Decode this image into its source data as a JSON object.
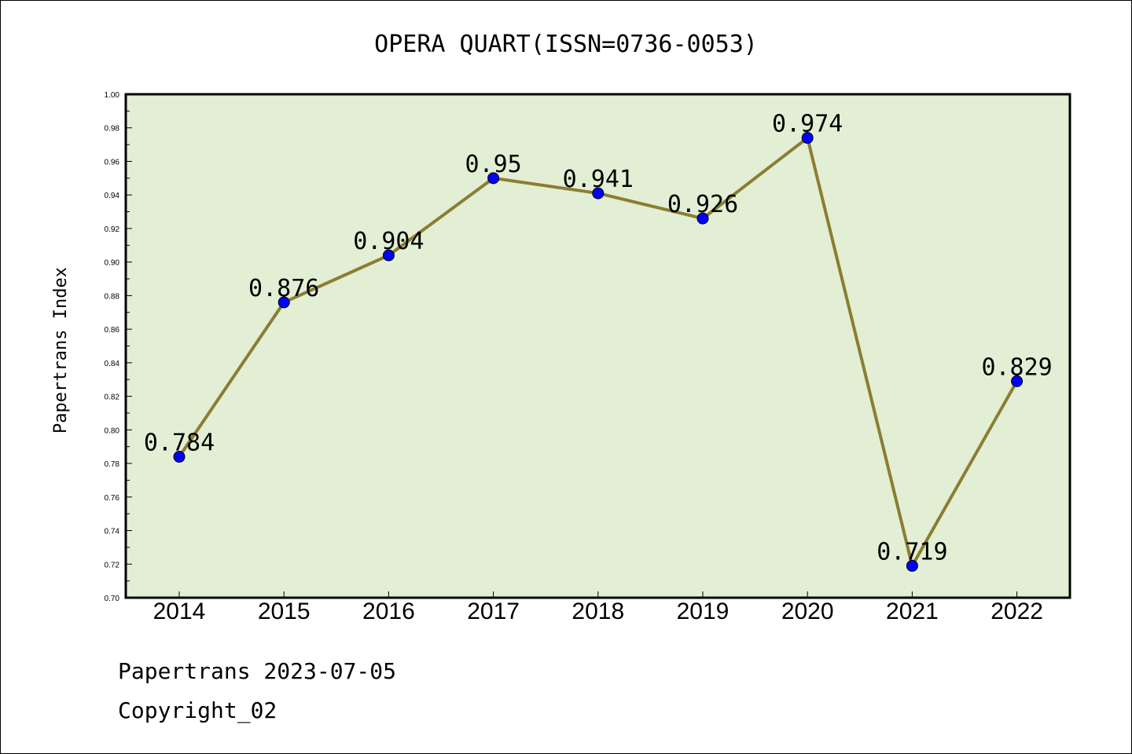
{
  "chart_data": {
    "type": "line",
    "title": "OPERA QUART(ISSN=0736-0053)",
    "xlabel": "",
    "ylabel": "Papertrans Index",
    "categories": [
      "2014",
      "2015",
      "2016",
      "2017",
      "2018",
      "2019",
      "2020",
      "2021",
      "2022"
    ],
    "series": [
      {
        "values": [
          0.784,
          0.876,
          0.904,
          0.95,
          0.941,
          0.926,
          0.974,
          0.719,
          0.829
        ],
        "data_labels": [
          "0.784",
          "0.876",
          "0.904",
          "0.95",
          "0.941",
          "0.926",
          "0.974",
          "0.719",
          "0.829"
        ]
      }
    ],
    "ylim": [
      0.7,
      1.0
    ],
    "yticks": [
      "0.70",
      "0.72",
      "0.74",
      "0.76",
      "0.78",
      "0.80",
      "0.82",
      "0.84",
      "0.86",
      "0.88",
      "0.90",
      "0.92",
      "0.94",
      "0.96",
      "0.98",
      "1.00"
    ],
    "grid": false,
    "legend": "none",
    "colors": {
      "plot_background": "#e2efd5",
      "line": "#8b7d32",
      "marker": "#0000ff"
    }
  },
  "footer": {
    "line1": "Papertrans 2023-07-05",
    "line2": "Copyright_02"
  }
}
